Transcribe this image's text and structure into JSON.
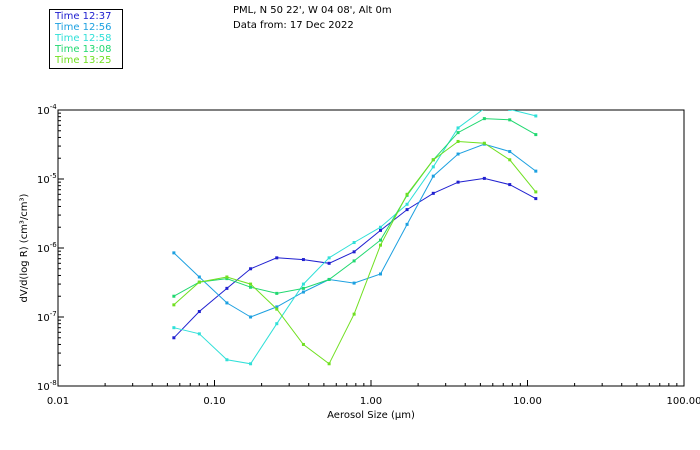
{
  "chart_data": {
    "type": "line",
    "title_lines": [
      "PML, N 50 22', W 04 08', Alt 0m",
      "Data from: 17 Dec 2022"
    ],
    "xlabel": "Aerosol Size (µm)",
    "ylabel": "dV/d(log R) (cm³/cm³)",
    "xscale": "log",
    "yscale": "log",
    "xlim": [
      0.01,
      100
    ],
    "ylim": [
      1e-08,
      0.0001
    ],
    "x_ticks": [
      {
        "value": 0.01,
        "label": "0.01"
      },
      {
        "value": 0.1,
        "label": "0.10"
      },
      {
        "value": 1,
        "label": "1.00"
      },
      {
        "value": 10,
        "label": "10.00"
      },
      {
        "value": 100,
        "label": "100.00"
      }
    ],
    "y_ticks": [
      {
        "value": 1e-08,
        "mant": "10",
        "exp": "-8"
      },
      {
        "value": 1e-07,
        "mant": "10",
        "exp": "-7"
      },
      {
        "value": 1e-06,
        "mant": "10",
        "exp": "-6"
      },
      {
        "value": 1e-05,
        "mant": "10",
        "exp": "-5"
      },
      {
        "value": 0.0001,
        "mant": "10",
        "exp": "-4"
      }
    ],
    "x": [
      0.055,
      0.08,
      0.12,
      0.17,
      0.25,
      0.37,
      0.54,
      0.78,
      1.15,
      1.7,
      2.5,
      3.6,
      5.3,
      7.7,
      11.3
    ],
    "series": [
      {
        "name": "Time 12:37",
        "color": "#2020d0",
        "values": [
          5e-08,
          1.2e-07,
          2.6e-07,
          5e-07,
          7.2e-07,
          6.8e-07,
          6e-07,
          8.8e-07,
          1.8e-06,
          3.6e-06,
          6.2e-06,
          9e-06,
          1.02e-05,
          8.3e-06,
          5.2e-06
        ]
      },
      {
        "name": "Time 12:56",
        "color": "#1ca0e0",
        "values": [
          8.5e-07,
          3.8e-07,
          1.6e-07,
          1e-07,
          1.4e-07,
          2.3e-07,
          3.5e-07,
          3.1e-07,
          4.2e-07,
          2.2e-06,
          1.1e-05,
          2.3e-05,
          3.2e-05,
          2.5e-05,
          1.3e-05
        ]
      },
      {
        "name": "Time 12:58",
        "color": "#30e0d8",
        "values": [
          7e-08,
          5.7e-08,
          2.4e-08,
          2.1e-08,
          8e-08,
          3e-07,
          7.2e-07,
          1.2e-06,
          2e-06,
          4.3e-06,
          1.5e-05,
          5.5e-05,
          0.000105,
          0.000102,
          8.2e-05
        ]
      },
      {
        "name": "Time 13:08",
        "color": "#20d870",
        "values": [
          2e-07,
          3.2e-07,
          3.6e-07,
          2.7e-07,
          2.2e-07,
          2.6e-07,
          3.5e-07,
          6.5e-07,
          1.3e-06,
          5.8e-06,
          1.9e-05,
          4.7e-05,
          7.5e-05,
          7.2e-05,
          4.4e-05
        ]
      },
      {
        "name": "Time 13:25",
        "color": "#70e020",
        "values": [
          1.5e-07,
          3.2e-07,
          3.8e-07,
          3e-07,
          1.3e-07,
          4e-08,
          2.1e-08,
          1.1e-07,
          1.1e-06,
          6e-06,
          1.9e-05,
          3.5e-05,
          3.3e-05,
          1.9e-05,
          6.5e-06
        ]
      }
    ]
  }
}
